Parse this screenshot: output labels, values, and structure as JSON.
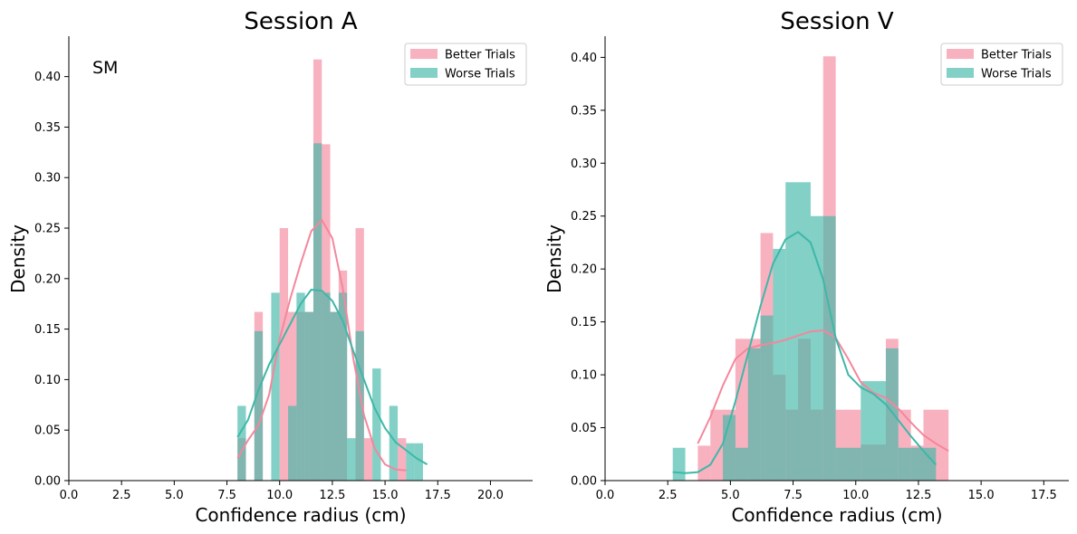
{
  "chart_data": [
    {
      "type": "histogram",
      "title": "Session A",
      "xlabel": "Confidence radius (cm)",
      "ylabel": "Density",
      "annotation": "SM",
      "xlim": [
        0,
        22
      ],
      "ylim": [
        0,
        0.44
      ],
      "xticks": [
        "0.0",
        "2.5",
        "5.0",
        "7.5",
        "10.0",
        "12.5",
        "15.0",
        "17.5",
        "20.0"
      ],
      "yticks": [
        "0.00",
        "0.05",
        "0.10",
        "0.15",
        "0.20",
        "0.25",
        "0.30",
        "0.35",
        "0.40"
      ],
      "legend_position": "top-right",
      "series": [
        {
          "name": "Better Trials",
          "color": "#f4879c",
          "bins": [
            [
              8.0,
              8.4,
              0.042
            ],
            [
              8.4,
              8.8,
              0.0
            ],
            [
              8.8,
              9.2,
              0.167
            ],
            [
              9.2,
              9.6,
              0.0
            ],
            [
              9.6,
              10.0,
              0.0
            ],
            [
              10.0,
              10.4,
              0.25
            ],
            [
              10.4,
              10.8,
              0.167
            ],
            [
              10.8,
              11.2,
              0.167
            ],
            [
              11.2,
              11.6,
              0.167
            ],
            [
              11.6,
              12.0,
              0.417
            ],
            [
              12.0,
              12.4,
              0.333
            ],
            [
              12.4,
              12.8,
              0.167
            ],
            [
              12.8,
              13.2,
              0.208
            ],
            [
              13.2,
              13.6,
              0.0
            ],
            [
              13.6,
              14.0,
              0.25
            ],
            [
              14.0,
              14.4,
              0.042
            ],
            [
              14.4,
              14.8,
              0.0
            ],
            [
              14.8,
              15.2,
              0.0
            ],
            [
              15.2,
              15.6,
              0.0
            ],
            [
              15.6,
              16.0,
              0.042
            ]
          ],
          "kde": [
            [
              8.0,
              0.022
            ],
            [
              8.5,
              0.04
            ],
            [
              9.0,
              0.055
            ],
            [
              9.5,
              0.085
            ],
            [
              10.0,
              0.14
            ],
            [
              10.5,
              0.18
            ],
            [
              11.0,
              0.215
            ],
            [
              11.5,
              0.247
            ],
            [
              12.0,
              0.258
            ],
            [
              12.5,
              0.24
            ],
            [
              13.0,
              0.19
            ],
            [
              13.5,
              0.12
            ],
            [
              14.0,
              0.065
            ],
            [
              14.5,
              0.032
            ],
            [
              15.0,
              0.016
            ],
            [
              15.5,
              0.011
            ],
            [
              16.0,
              0.01
            ]
          ]
        },
        {
          "name": "Worse Trials",
          "color": "#3fb7a8",
          "bins": [
            [
              8.0,
              8.4,
              0.074
            ],
            [
              8.4,
              8.8,
              0.0
            ],
            [
              8.8,
              9.2,
              0.148
            ],
            [
              9.2,
              9.6,
              0.0
            ],
            [
              9.6,
              10.0,
              0.186
            ],
            [
              10.0,
              10.4,
              0.0
            ],
            [
              10.4,
              10.8,
              0.074
            ],
            [
              10.8,
              11.2,
              0.186
            ],
            [
              11.2,
              11.6,
              0.167
            ],
            [
              11.6,
              12.0,
              0.334
            ],
            [
              12.0,
              12.4,
              0.186
            ],
            [
              12.4,
              12.8,
              0.167
            ],
            [
              12.8,
              13.2,
              0.186
            ],
            [
              13.2,
              13.6,
              0.042
            ],
            [
              13.6,
              14.0,
              0.148
            ],
            [
              14.0,
              14.4,
              0.0
            ],
            [
              14.4,
              14.8,
              0.111
            ],
            [
              14.8,
              15.2,
              0.0
            ],
            [
              15.2,
              15.6,
              0.074
            ],
            [
              15.6,
              16.0,
              0.0
            ],
            [
              16.0,
              16.4,
              0.037
            ],
            [
              16.4,
              16.8,
              0.037
            ]
          ],
          "kde": [
            [
              8.0,
              0.043
            ],
            [
              8.5,
              0.06
            ],
            [
              9.0,
              0.09
            ],
            [
              9.5,
              0.115
            ],
            [
              10.0,
              0.135
            ],
            [
              10.5,
              0.155
            ],
            [
              11.0,
              0.175
            ],
            [
              11.5,
              0.189
            ],
            [
              12.0,
              0.188
            ],
            [
              12.5,
              0.178
            ],
            [
              13.0,
              0.158
            ],
            [
              13.5,
              0.128
            ],
            [
              14.0,
              0.1
            ],
            [
              14.5,
              0.072
            ],
            [
              15.0,
              0.052
            ],
            [
              15.5,
              0.038
            ],
            [
              16.0,
              0.03
            ],
            [
              16.5,
              0.022
            ],
            [
              17.0,
              0.016
            ]
          ]
        }
      ]
    },
    {
      "type": "histogram",
      "title": "Session V",
      "xlabel": "Confidence radius (cm)",
      "ylabel": "Density",
      "xlim": [
        0,
        18.5
      ],
      "ylim": [
        0,
        0.42
      ],
      "xticks": [
        "0.0",
        "2.5",
        "5.0",
        "7.5",
        "10.0",
        "12.5",
        "15.0",
        "17.5"
      ],
      "yticks": [
        "0.00",
        "0.05",
        "0.10",
        "0.15",
        "0.20",
        "0.25",
        "0.30",
        "0.35",
        "0.40"
      ],
      "legend_position": "top-right",
      "series": [
        {
          "name": "Better Trials",
          "color": "#f4879c",
          "bins": [
            [
              3.7,
              4.2,
              0.033
            ],
            [
              4.2,
              5.2,
              0.067
            ],
            [
              5.2,
              6.2,
              0.134
            ],
            [
              6.2,
              6.7,
              0.234
            ],
            [
              6.7,
              7.2,
              0.1
            ],
            [
              7.2,
              7.7,
              0.067
            ],
            [
              7.7,
              8.2,
              0.134
            ],
            [
              8.2,
              8.7,
              0.067
            ],
            [
              8.7,
              9.2,
              0.401
            ],
            [
              9.2,
              10.2,
              0.067
            ],
            [
              10.2,
              11.2,
              0.034
            ],
            [
              11.2,
              11.7,
              0.134
            ],
            [
              11.7,
              12.2,
              0.067
            ],
            [
              12.2,
              12.7,
              0.033
            ],
            [
              12.7,
              13.7,
              0.067
            ]
          ],
          "kde": [
            [
              3.7,
              0.035
            ],
            [
              4.2,
              0.06
            ],
            [
              4.7,
              0.09
            ],
            [
              5.2,
              0.115
            ],
            [
              5.7,
              0.125
            ],
            [
              6.2,
              0.128
            ],
            [
              6.7,
              0.13
            ],
            [
              7.2,
              0.133
            ],
            [
              7.7,
              0.137
            ],
            [
              8.2,
              0.141
            ],
            [
              8.7,
              0.142
            ],
            [
              9.2,
              0.135
            ],
            [
              9.7,
              0.115
            ],
            [
              10.2,
              0.093
            ],
            [
              10.7,
              0.083
            ],
            [
              11.2,
              0.078
            ],
            [
              11.7,
              0.068
            ],
            [
              12.2,
              0.055
            ],
            [
              12.7,
              0.043
            ],
            [
              13.2,
              0.035
            ],
            [
              13.7,
              0.028
            ]
          ]
        },
        {
          "name": "Worse Trials",
          "color": "#3fb7a8",
          "bins": [
            [
              2.7,
              3.2,
              0.031
            ],
            [
              4.7,
              5.2,
              0.062
            ],
            [
              5.2,
              5.7,
              0.031
            ],
            [
              5.7,
              6.2,
              0.125
            ],
            [
              6.2,
              6.7,
              0.156
            ],
            [
              6.7,
              7.2,
              0.219
            ],
            [
              7.2,
              8.2,
              0.282
            ],
            [
              8.2,
              8.7,
              0.25
            ],
            [
              8.7,
              9.2,
              0.25
            ],
            [
              9.2,
              10.2,
              0.031
            ],
            [
              10.2,
              11.2,
              0.094
            ],
            [
              11.2,
              11.7,
              0.125
            ],
            [
              11.7,
              12.2,
              0.031
            ],
            [
              12.2,
              13.2,
              0.031
            ]
          ],
          "kde": [
            [
              2.7,
              0.008
            ],
            [
              3.2,
              0.007
            ],
            [
              3.7,
              0.008
            ],
            [
              4.2,
              0.015
            ],
            [
              4.7,
              0.035
            ],
            [
              5.2,
              0.075
            ],
            [
              5.7,
              0.12
            ],
            [
              6.2,
              0.165
            ],
            [
              6.7,
              0.205
            ],
            [
              7.2,
              0.228
            ],
            [
              7.7,
              0.235
            ],
            [
              8.2,
              0.225
            ],
            [
              8.7,
              0.19
            ],
            [
              9.2,
              0.135
            ],
            [
              9.7,
              0.1
            ],
            [
              10.2,
              0.088
            ],
            [
              10.7,
              0.082
            ],
            [
              11.2,
              0.072
            ],
            [
              11.7,
              0.057
            ],
            [
              12.2,
              0.042
            ],
            [
              12.7,
              0.028
            ],
            [
              13.2,
              0.015
            ]
          ]
        }
      ]
    }
  ]
}
